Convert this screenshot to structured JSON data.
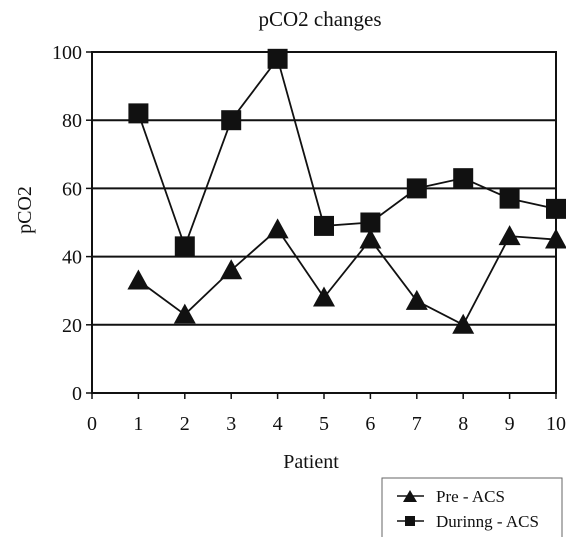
{
  "chart_data": {
    "type": "line",
    "title": "pCO2 changes",
    "xlabel": "Patient",
    "ylabel": "pCO2",
    "x": [
      1,
      2,
      3,
      4,
      5,
      6,
      7,
      8,
      9,
      10
    ],
    "xlim": [
      0,
      10
    ],
    "ylim": [
      0,
      100
    ],
    "xticks": [
      "0",
      "1",
      "2",
      "3",
      "4",
      "5",
      "6",
      "7",
      "8",
      "9",
      "10"
    ],
    "yticks": [
      "0",
      "20",
      "40",
      "60",
      "80",
      "100"
    ],
    "grid": "horizontal",
    "legend_position": "bottom-right",
    "series": [
      {
        "name": "Pre - ACS",
        "marker": "triangle",
        "color": "#111111",
        "values": [
          33,
          23,
          36,
          48,
          28,
          45,
          27,
          20,
          46,
          45
        ]
      },
      {
        "name": "Durinng - ACS",
        "marker": "square",
        "color": "#111111",
        "values": [
          82,
          43,
          80,
          98,
          49,
          50,
          60,
          63,
          57,
          54
        ]
      }
    ]
  }
}
